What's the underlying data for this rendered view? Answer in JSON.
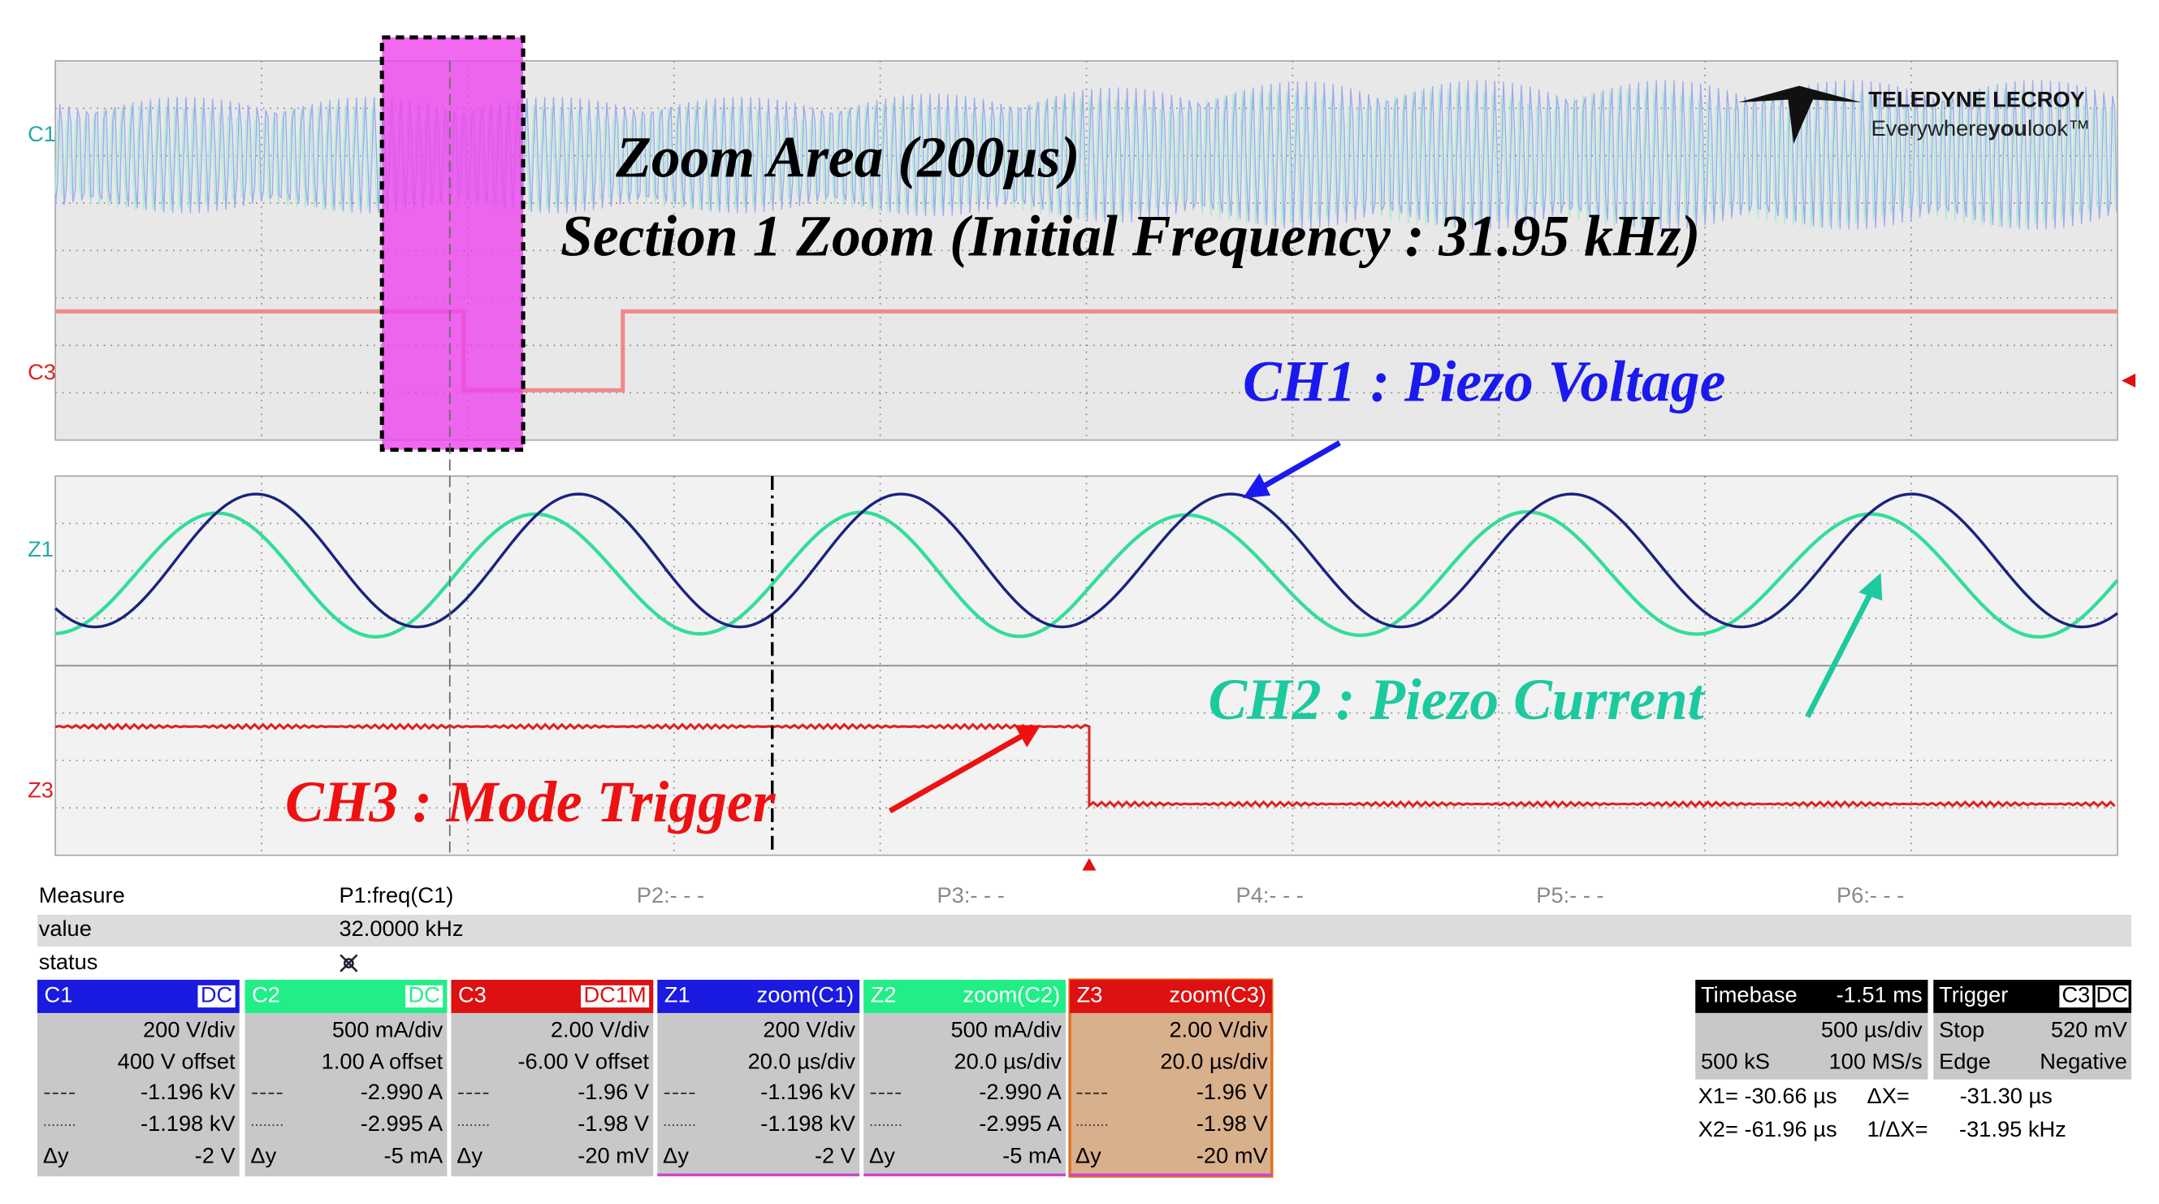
{
  "annotations": {
    "zoom_area": "Zoom Area (200µs)",
    "section": "Section 1 Zoom (Initial Frequency : 31.95 kHz)",
    "ch1": "CH1 : Piezo Voltage",
    "ch2": "CH2 : Piezo Current",
    "ch3": "CH3 : Mode Trigger"
  },
  "logo": {
    "brand": "TELEDYNE LECROY",
    "tagline_a": "Everywhere",
    "tagline_b": "you",
    "tagline_c": "look™"
  },
  "trace_labels": {
    "top_1": "C1",
    "top_2": "C3",
    "zoom_1": "Z1",
    "zoom_2": "Z3"
  },
  "measure": {
    "header": [
      "Measure",
      "P1:freq(C1)",
      "P2:- - -",
      "P3:- - -",
      "P4:- - -",
      "P5:- - -",
      "P6:- - -"
    ],
    "value_row": [
      "value",
      "32.0000 kHz"
    ],
    "status_row": [
      "status"
    ]
  },
  "channels": [
    {
      "name": "C1",
      "tag": "DC",
      "scale": "200 V/div",
      "offset": "400 V offset",
      "cursor1": "-1.196 kV",
      "cursor2": "-1.198 kV",
      "delta_label": "Δy",
      "delta": "-2 V"
    },
    {
      "name": "C2",
      "tag": "DC",
      "scale": "500 mA/div",
      "offset": "1.00 A offset",
      "cursor1": "-2.990 A",
      "cursor2": "-2.995 A",
      "delta_label": "Δy",
      "delta": "-5 mA"
    },
    {
      "name": "C3",
      "tag": "DC1M",
      "scale": "2.00 V/div",
      "offset": "-6.00 V offset",
      "cursor1": "-1.96 V",
      "cursor2": "-1.98 V",
      "delta_label": "Δy",
      "delta": "-20 mV"
    },
    {
      "name": "Z1",
      "tag": "zoom(C1)",
      "scale": "200 V/div",
      "offset": "20.0 µs/div",
      "cursor1": "-1.196 kV",
      "cursor2": "-1.198 kV",
      "delta_label": "Δy",
      "delta": "-2 V"
    },
    {
      "name": "Z2",
      "tag": "zoom(C2)",
      "scale": "500 mA/div",
      "offset": "20.0 µs/div",
      "cursor1": "-2.990 A",
      "cursor2": "-2.995 A",
      "delta_label": "Δy",
      "delta": "-5 mA"
    },
    {
      "name": "Z3",
      "tag": "zoom(C3)",
      "scale": "2.00 V/div",
      "offset": "20.0 µs/div",
      "cursor1": "-1.96 V",
      "cursor2": "-1.98 V",
      "delta_label": "Δy",
      "delta": "-20 mV"
    }
  ],
  "timebase": {
    "title": "Timebase",
    "delay": "-1.51 ms",
    "scale": "500 µs/div",
    "samples": "500 kS",
    "rate": "100 MS/s"
  },
  "trigger": {
    "title": "Trigger",
    "source": "C3",
    "coupling": "DC",
    "mode": "Stop",
    "level": "520 mV",
    "type": "Edge",
    "slope": "Negative"
  },
  "cursors": {
    "x1": "X1= -30.66 µs",
    "dx_label": "ΔX=",
    "dx": "-31.30 µs",
    "x2": "X2= -61.96 µs",
    "inv_label": "1/ΔX=",
    "inv": "-31.95 kHz"
  }
}
